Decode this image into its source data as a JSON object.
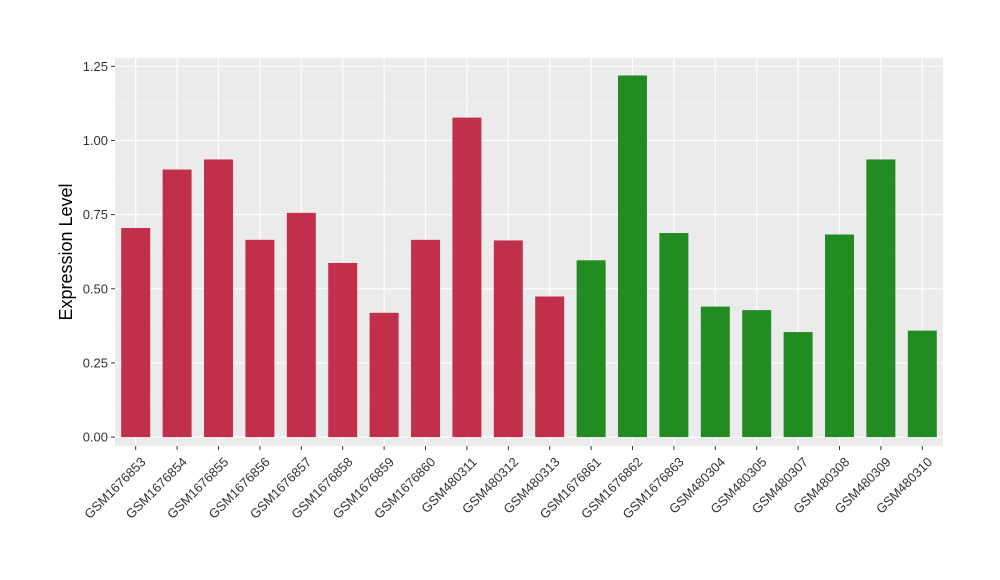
{
  "chart_data": {
    "type": "bar",
    "title": "",
    "xlabel": "",
    "ylabel": "Expression Level",
    "ylim": [
      -0.03,
      1.278
    ],
    "yticks": [
      0.0,
      0.25,
      0.5,
      0.75,
      1.0,
      1.25
    ],
    "ytick_labels": [
      "0.00",
      "0.25",
      "0.50",
      "0.75",
      "1.00",
      "1.25"
    ],
    "grid": true,
    "legend": "none",
    "panel_background": "#EBEBEB",
    "categories": [
      "GSM1676853",
      "GSM1676854",
      "GSM1676855",
      "GSM1676856",
      "GSM1676857",
      "GSM1676858",
      "GSM1676859",
      "GSM1676860",
      "GSM480311",
      "GSM480312",
      "GSM480313",
      "GSM1676861",
      "GSM1676862",
      "GSM1676863",
      "GSM480304",
      "GSM480305",
      "GSM480307",
      "GSM480308",
      "GSM480309",
      "GSM480310"
    ],
    "values": [
      0.705,
      0.902,
      0.936,
      0.665,
      0.756,
      0.587,
      0.419,
      0.665,
      1.077,
      0.663,
      0.474,
      0.596,
      1.219,
      0.688,
      0.44,
      0.428,
      0.354,
      0.683,
      0.936,
      0.359
    ],
    "colors": [
      "#C1304B",
      "#C1304B",
      "#C1304B",
      "#C1304B",
      "#C1304B",
      "#C1304B",
      "#C1304B",
      "#C1304B",
      "#C1304B",
      "#C1304B",
      "#C1304B",
      "#228B22",
      "#228B22",
      "#228B22",
      "#228B22",
      "#228B22",
      "#228B22",
      "#228B22",
      "#228B22",
      "#228B22"
    ]
  }
}
